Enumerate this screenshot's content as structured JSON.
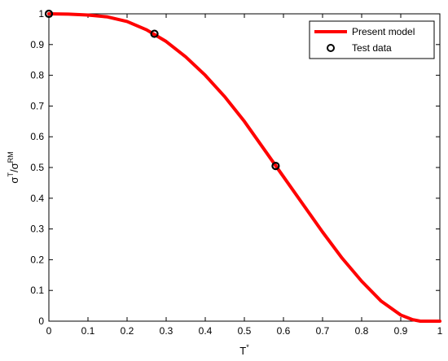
{
  "chart_data": {
    "type": "line",
    "xlabel": "T",
    "xlabel_sup": "*",
    "ylabel_parts": [
      "σ",
      "T",
      "/σ",
      "RM"
    ],
    "xlim": [
      0,
      1
    ],
    "ylim": [
      0,
      1
    ],
    "xticks": [
      0,
      0.1,
      0.2,
      0.3,
      0.4,
      0.5,
      0.6,
      0.7,
      0.8,
      0.9,
      1
    ],
    "xtick_labels": [
      "0",
      "0.1",
      "0.2",
      "0.3",
      "0.4",
      "0.5",
      "0.6",
      "0.7",
      "0.8",
      "0.9",
      "1"
    ],
    "yticks": [
      0,
      0.1,
      0.2,
      0.3,
      0.4,
      0.5,
      0.6,
      0.7,
      0.8,
      0.9,
      1
    ],
    "ytick_labels": [
      "0",
      "0.1",
      "0.2",
      "0.3",
      "0.4",
      "0.5",
      "0.6",
      "0.7",
      "0.8",
      "0.9",
      "1"
    ],
    "grid": false,
    "legend": "top-right",
    "series": [
      {
        "name": "Present model",
        "kind": "line",
        "color": "#ff0000",
        "x": [
          0,
          0.05,
          0.1,
          0.15,
          0.2,
          0.25,
          0.3,
          0.35,
          0.4,
          0.45,
          0.5,
          0.55,
          0.6,
          0.65,
          0.7,
          0.75,
          0.8,
          0.85,
          0.9,
          0.93,
          0.95,
          1.0
        ],
        "y": [
          1.0,
          0.999,
          0.996,
          0.99,
          0.975,
          0.948,
          0.91,
          0.86,
          0.8,
          0.73,
          0.65,
          0.56,
          0.47,
          0.38,
          0.29,
          0.205,
          0.13,
          0.065,
          0.02,
          0.005,
          0.0,
          0.0
        ]
      },
      {
        "name": "Test data",
        "kind": "scatter",
        "color": "#000000",
        "x": [
          0.0,
          0.27,
          0.58
        ],
        "y": [
          1.0,
          0.935,
          0.505
        ]
      }
    ]
  }
}
